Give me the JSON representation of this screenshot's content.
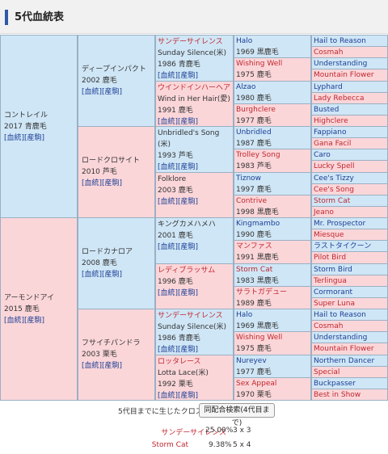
{
  "header": {
    "title": "5代血統表"
  },
  "gen1": [
    {
      "name": "コントレイル",
      "info": "2017 青鹿毛",
      "links": "[血統][産駒]",
      "sex": "m"
    },
    {
      "name": "アーモンドアイ",
      "info": "2015 鹿毛",
      "links": "[血統][産駒]",
      "sex": "f"
    }
  ],
  "gen2": [
    {
      "name": "ディープインパクト",
      "info": "2002 鹿毛",
      "links": "[血統][産駒]",
      "sex": "m"
    },
    {
      "name": "ロードクロサイト",
      "info": "2010 芦毛",
      "links": "[血統][産駒]",
      "sex": "f"
    },
    {
      "name": "ロードカナロア",
      "info": "2008 鹿毛",
      "links": "[血統][産駒]",
      "sex": "m"
    },
    {
      "name": "フサイチパンドラ",
      "info": "2003 栗毛",
      "links": "[血統][産駒]",
      "sex": "f"
    }
  ],
  "gen3": [
    {
      "name": "サンデーサイレンス",
      "sub": "Sunday Silence(米)",
      "info": "1986 青鹿毛",
      "links": "[血統][産駒]",
      "sex": "m",
      "red": true
    },
    {
      "name": "ウインドインハーヘア",
      "sub": "Wind in Her Hair(愛)",
      "info": "1991 鹿毛",
      "links": "[血統][産駒]",
      "sex": "f",
      "red": true
    },
    {
      "name": "Unbridled's Song",
      "sub": "(米)",
      "info": "1993 芦毛",
      "links": "[血統][産駒]",
      "sex": "m",
      "red": false
    },
    {
      "name": "Folklore",
      "sub": "",
      "info": "2003 鹿毛",
      "links": "[血統][産駒]",
      "sex": "f",
      "red": false
    },
    {
      "name": "キングカメハメハ",
      "sub": "",
      "info": "2001 鹿毛",
      "links": "[血統][産駒]",
      "sex": "m",
      "red": false
    },
    {
      "name": "レディブラッサム",
      "sub": "",
      "info": "1996 鹿毛",
      "links": "[血統][産駒]",
      "sex": "f",
      "red": true
    },
    {
      "name": "サンデーサイレンス",
      "sub": "Sunday Silence(米)",
      "info": "1986 青鹿毛",
      "links": "[血統][産駒]",
      "sex": "m",
      "red": true
    },
    {
      "name": "ロッタレース",
      "sub": "Lotta Lace(米)",
      "info": "1992 栗毛",
      "links": "[血統][産駒]",
      "sex": "f",
      "red": true
    }
  ],
  "gen4": [
    {
      "name": "Halo",
      "info": "1969 黒鹿毛",
      "sex": "m",
      "red": false
    },
    {
      "name": "Wishing Well",
      "info": "1975 鹿毛",
      "sex": "f",
      "red": true
    },
    {
      "name": "Alzao",
      "info": "1980 鹿毛",
      "sex": "m",
      "red": false
    },
    {
      "name": "Burghclere",
      "info": "1977 鹿毛",
      "sex": "f",
      "red": true
    },
    {
      "name": "Unbridled",
      "info": "1987 鹿毛",
      "sex": "m",
      "red": false
    },
    {
      "name": "Trolley Song",
      "info": "1983 芦毛",
      "sex": "f",
      "red": true
    },
    {
      "name": "Tiznow",
      "info": "1997 鹿毛",
      "sex": "m",
      "red": false
    },
    {
      "name": "Contrive",
      "info": "1998 黒鹿毛",
      "sex": "f",
      "red": true
    },
    {
      "name": "Kingmambo",
      "info": "1990 鹿毛",
      "sex": "m",
      "red": false
    },
    {
      "name": "マンファス",
      "info": "1991 黒鹿毛",
      "sex": "f",
      "red": true
    },
    {
      "name": "Storm Cat",
      "info": "1983 黒鹿毛",
      "sex": "m",
      "red": true
    },
    {
      "name": "サラトガデュー",
      "info": "1989 鹿毛",
      "sex": "f",
      "red": true
    },
    {
      "name": "Halo",
      "info": "1969 黒鹿毛",
      "sex": "m",
      "red": false
    },
    {
      "name": "Wishing Well",
      "info": "1975 鹿毛",
      "sex": "f",
      "red": true
    },
    {
      "name": "Nureyev",
      "info": "1977 鹿毛",
      "sex": "m",
      "red": false
    },
    {
      "name": "Sex Appeal",
      "info": "1970 栗毛",
      "sex": "f",
      "red": true
    }
  ],
  "gen5": [
    {
      "name": "Hail to Reason",
      "sex": "m",
      "red": false
    },
    {
      "name": "Cosmah",
      "sex": "f",
      "red": true
    },
    {
      "name": "Understanding",
      "sex": "m",
      "red": false
    },
    {
      "name": "Mountain Flower",
      "sex": "f",
      "red": true
    },
    {
      "name": "Lyphard",
      "sex": "m",
      "red": false
    },
    {
      "name": "Lady Rebecca",
      "sex": "f",
      "red": true
    },
    {
      "name": "Busted",
      "sex": "m",
      "red": false
    },
    {
      "name": "Highclere",
      "sex": "f",
      "red": true
    },
    {
      "name": "Fappiano",
      "sex": "m",
      "red": false
    },
    {
      "name": "Gana Facil",
      "sex": "f",
      "red": true
    },
    {
      "name": "Caro",
      "sex": "m",
      "red": false
    },
    {
      "name": "Lucky Spell",
      "sex": "f",
      "red": true
    },
    {
      "name": "Cee's Tizzy",
      "sex": "m",
      "red": false
    },
    {
      "name": "Cee's Song",
      "sex": "f",
      "red": true
    },
    {
      "name": "Storm Cat",
      "sex": "m",
      "red": true
    },
    {
      "name": "Jeano",
      "sex": "f",
      "red": true
    },
    {
      "name": "Mr. Prospector",
      "sex": "m",
      "red": false
    },
    {
      "name": "Miesque",
      "sex": "f",
      "red": true
    },
    {
      "name": "ラストタイクーン",
      "sex": "m",
      "red": false
    },
    {
      "name": "Pilot Bird",
      "sex": "f",
      "red": true
    },
    {
      "name": "Storm Bird",
      "sex": "m",
      "red": false
    },
    {
      "name": "Terlingua",
      "sex": "f",
      "red": true
    },
    {
      "name": "Cormorant",
      "sex": "m",
      "red": false
    },
    {
      "name": "Super Luna",
      "sex": "f",
      "red": true
    },
    {
      "name": "Hail to Reason",
      "sex": "m",
      "red": false
    },
    {
      "name": "Cosmah",
      "sex": "f",
      "red": true
    },
    {
      "name": "Understanding",
      "sex": "m",
      "red": false
    },
    {
      "name": "Mountain Flower",
      "sex": "f",
      "red": true
    },
    {
      "name": "Northern Dancer",
      "sex": "m",
      "red": false
    },
    {
      "name": "Special",
      "sex": "f",
      "red": true
    },
    {
      "name": "Buckpasser",
      "sex": "m",
      "red": false
    },
    {
      "name": "Best in Show",
      "sex": "f",
      "red": true
    }
  ],
  "cross": {
    "label": "5代目までに生じたクロス",
    "button": "同配合検索(4代目まで)",
    "items": [
      {
        "name": "サンデーサイレンス",
        "percent": "25.00%",
        "pattern": "3 x 3"
      },
      {
        "name": "Storm Cat",
        "percent": "9.38%",
        "pattern": "5 x 4"
      }
    ]
  },
  "colors": {
    "male_bg": "#cfe6f6",
    "female_bg": "#fbd6d9",
    "accent": "#2d59a8",
    "red_text": "#c0282f"
  }
}
